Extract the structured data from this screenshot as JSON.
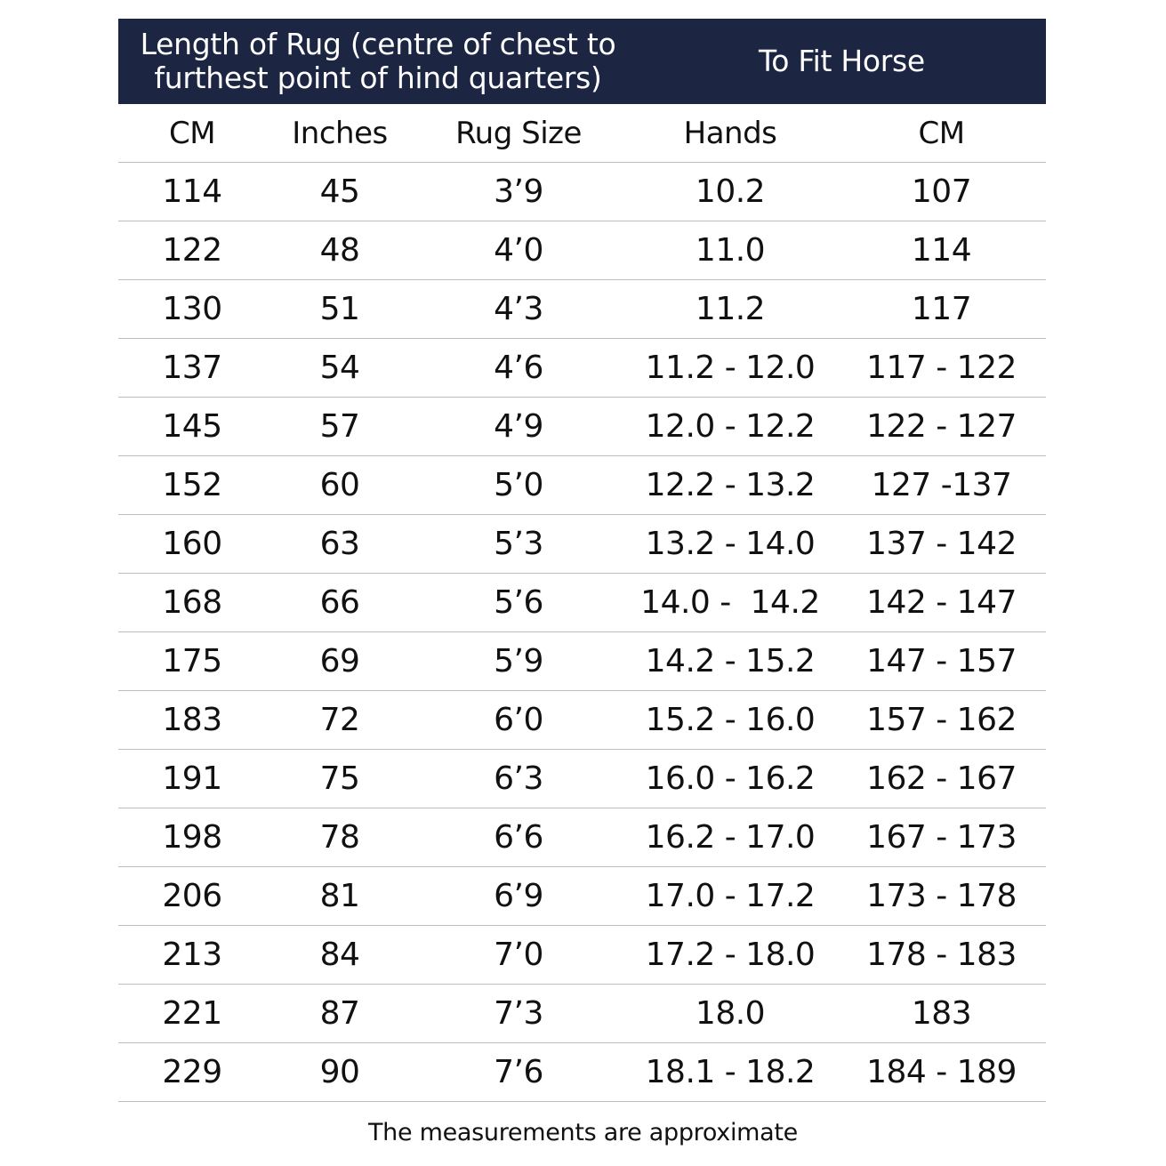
{
  "header_groups": {
    "left_line1": "Length of Rug (centre of chest to",
    "left_line2": "furthest point of hind quarters)",
    "right": "To Fit Horse"
  },
  "columns": [
    "CM",
    "Inches",
    "Rug Size",
    "Hands",
    "CM"
  ],
  "rows": [
    [
      "114",
      "45",
      "3’9",
      "10.2",
      "107"
    ],
    [
      "122",
      "48",
      "4’0",
      "11.0",
      "114"
    ],
    [
      "130",
      "51",
      "4’3",
      "11.2",
      "117"
    ],
    [
      "137",
      "54",
      "4’6",
      "11.2 - 12.0",
      "117 - 122"
    ],
    [
      "145",
      "57",
      "4’9",
      "12.0 - 12.2",
      "122 - 127"
    ],
    [
      "152",
      "60",
      "5’0",
      "12.2 - 13.2",
      "127 -137"
    ],
    [
      "160",
      "63",
      "5’3",
      "13.2 - 14.0",
      "137 - 142"
    ],
    [
      "168",
      "66",
      "5’6",
      "14.0 -  14.2",
      "142 - 147"
    ],
    [
      "175",
      "69",
      "5’9",
      "14.2 - 15.2",
      "147 - 157"
    ],
    [
      "183",
      "72",
      "6’0",
      "15.2 - 16.0",
      "157 - 162"
    ],
    [
      "191",
      "75",
      "6’3",
      "16.0 - 16.2",
      "162 - 167"
    ],
    [
      "198",
      "78",
      "6’6",
      "16.2 - 17.0",
      "167 - 173"
    ],
    [
      "206",
      "81",
      "6’9",
      "17.0 - 17.2",
      "173 - 178"
    ],
    [
      "213",
      "84",
      "7’0",
      "17.2 - 18.0",
      "178 - 183"
    ],
    [
      "221",
      "87",
      "7’3",
      "18.0",
      "183"
    ],
    [
      "229",
      "90",
      "7’6",
      "18.1 - 18.2",
      "184 - 189"
    ]
  ],
  "footnote": "The measurements are approximate",
  "colors": {
    "header_bg": "#1c2541",
    "header_text": "#ffffff",
    "divider": "#bdbdbd"
  }
}
